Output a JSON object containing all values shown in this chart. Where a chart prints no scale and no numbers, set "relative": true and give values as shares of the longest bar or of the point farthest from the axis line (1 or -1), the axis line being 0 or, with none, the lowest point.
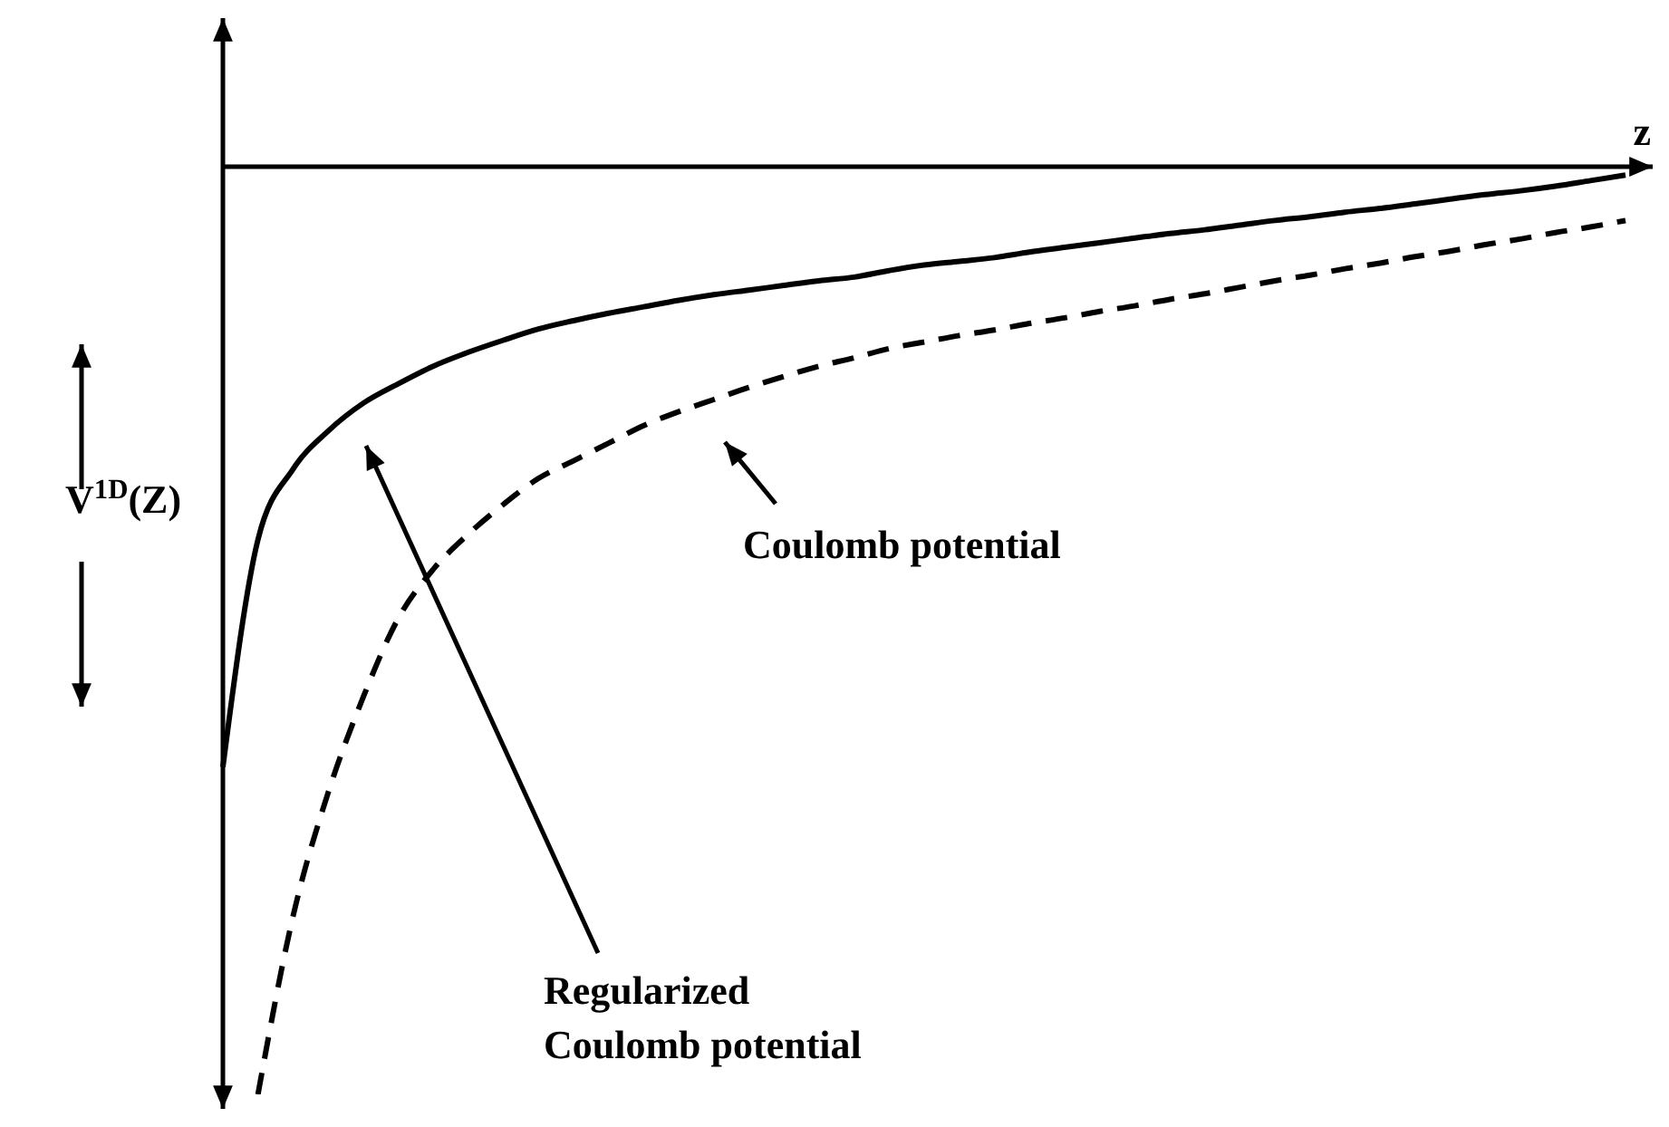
{
  "chart_data": {
    "type": "line",
    "relative": true,
    "xlabel": "z",
    "ylabel": "V$^{1D}$(Z)",
    "annotations": [
      "Coulomb potential",
      "Regularized\nCoulomb potential"
    ],
    "categories": [
      null,
      null,
      null,
      null,
      null,
      null,
      null,
      null,
      null,
      null,
      null,
      null,
      null,
      null,
      null,
      null,
      null,
      null,
      null,
      null,
      null,
      null,
      null,
      null,
      null,
      null,
      null,
      null,
      null,
      null,
      null,
      null,
      null,
      null,
      null,
      null,
      null,
      null,
      null,
      null,
      null
    ],
    "series": [
      {
        "color": "#000000",
        "line_style": "solid",
        "values": [
          -0.647,
          -0.402,
          -0.326,
          -0.285,
          -0.255,
          -0.234,
          -0.215,
          -0.2,
          -0.187,
          -0.175,
          -0.166,
          -0.158,
          -0.151,
          -0.144,
          -0.138,
          -0.133,
          -0.128,
          -0.123,
          -0.119,
          -0.112,
          -0.106,
          -0.102,
          -0.098,
          -0.092,
          -0.087,
          -0.082,
          -0.077,
          -0.072,
          -0.068,
          -0.063,
          -0.058,
          -0.054,
          -0.049,
          -0.045,
          -0.04,
          -0.035,
          -0.03,
          -0.026,
          -0.021,
          -0.015,
          -0.009
        ]
      },
      {
        "color": "#000000",
        "line_style": "dashed",
        "values": [
          null,
          -1.0,
          -0.808,
          -0.675,
          -0.572,
          -0.487,
          -0.434,
          -0.396,
          -0.364,
          -0.336,
          -0.317,
          -0.298,
          -0.279,
          -0.264,
          -0.251,
          -0.238,
          -0.226,
          -0.215,
          -0.206,
          -0.196,
          -0.189,
          -0.182,
          -0.176,
          -0.169,
          -0.163,
          -0.156,
          -0.15,
          -0.143,
          -0.137,
          -0.13,
          -0.123,
          -0.117,
          -0.11,
          -0.104,
          -0.097,
          -0.091,
          -0.084,
          -0.078,
          -0.071,
          -0.065,
          -0.058
        ]
      }
    ]
  }
}
